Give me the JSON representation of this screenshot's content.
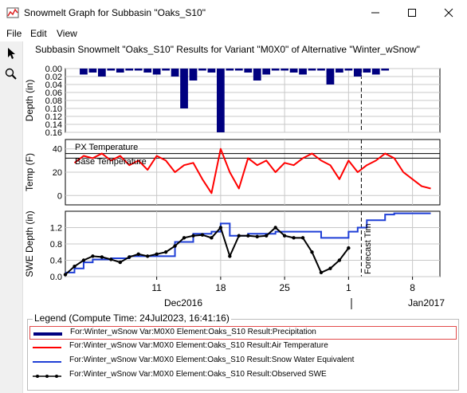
{
  "window": {
    "title": "Snowmelt Graph for Subbasin \"Oaks_S10\"",
    "minimize_glyph": "—",
    "maximize_glyph": "☐",
    "close_glyph": "✕"
  },
  "menu": [
    "File",
    "Edit",
    "View"
  ],
  "tools": [
    "pointer-icon",
    "zoom-icon"
  ],
  "chart_title": "Subbasin Snowmelt \"Oaks_S10\" Results for Variant \"M0X0\" of Alternative \"Winter_wSnow\"",
  "chart_data": [
    {
      "type": "bar",
      "ylabel": "Depth (in)",
      "ylim": [
        0.16,
        0.0
      ],
      "yticks": [
        "0.00",
        "0.02",
        "0.04",
        "0.06",
        "0.08",
        "0.10",
        "0.12",
        "0.14",
        "0.16"
      ],
      "x_days": [
        3,
        4,
        5,
        6,
        7,
        8,
        9,
        10,
        11,
        12,
        13,
        14,
        15,
        16,
        17,
        18,
        19,
        20,
        21,
        22,
        23,
        24,
        25,
        26,
        27,
        28,
        29,
        30,
        31,
        32,
        33,
        34,
        35,
        36,
        37,
        38,
        39,
        40
      ],
      "values": [
        0.015,
        0.01,
        0.02,
        0.005,
        0.01,
        0.005,
        0.005,
        0.01,
        0.015,
        0.005,
        0.02,
        0.1,
        0.03,
        0.005,
        0.01,
        0.16,
        0.005,
        0.005,
        0.01,
        0.03,
        0.015,
        0.005,
        0.005,
        0.01,
        0.015,
        0.005,
        0.005,
        0.04,
        0.01,
        0.005,
        0.02,
        0.01,
        0.015,
        0.005,
        0,
        0,
        0,
        0
      ],
      "color": "#000080"
    },
    {
      "type": "line",
      "ylabel": "Temp (F)",
      "ylim": [
        -8,
        48
      ],
      "yticks": [
        "0",
        "20",
        "40"
      ],
      "series": [
        {
          "name": "Air Temperature",
          "color": "#ff0000",
          "x": [
            2,
            3,
            4,
            5,
            6,
            7,
            8,
            9,
            10,
            11,
            12,
            13,
            14,
            15,
            16,
            17,
            18,
            19,
            20,
            21,
            22,
            23,
            24,
            25,
            26,
            27,
            28,
            29,
            30,
            31,
            32,
            33,
            34,
            35,
            36,
            37,
            38,
            39,
            40,
            41
          ],
          "values": [
            28,
            34,
            32,
            36,
            30,
            34,
            26,
            30,
            22,
            34,
            30,
            20,
            26,
            28,
            14,
            2,
            40,
            20,
            6,
            32,
            26,
            30,
            20,
            28,
            26,
            32,
            36,
            30,
            26,
            14,
            30,
            20,
            26,
            30,
            36,
            32,
            20,
            14,
            8,
            6
          ]
        }
      ],
      "reference_lines": [
        {
          "name": "PX Temperature",
          "value": 36
        },
        {
          "name": "Base Temperature",
          "value": 32
        }
      ]
    },
    {
      "type": "line",
      "ylabel": "SWE Depth (in)",
      "ylim": [
        0.0,
        1.6
      ],
      "yticks": [
        "0.0",
        "0.4",
        "0.8",
        "1.2"
      ],
      "x_ticks": [
        "11",
        "18",
        "25",
        "1",
        "8"
      ],
      "x_months": [
        "Dec2016",
        "Jan2017"
      ],
      "series": [
        {
          "name": "Snow Water Equivalent",
          "color": "#1f3fd6",
          "x": [
            1,
            2,
            3,
            4,
            5,
            6,
            7,
            8,
            9,
            10,
            11,
            12,
            13,
            14,
            15,
            16,
            17,
            18,
            19,
            20,
            21,
            22,
            23,
            24,
            25,
            26,
            27,
            28,
            29,
            30,
            31,
            32,
            33,
            34,
            35,
            36,
            37,
            38,
            39,
            40,
            41
          ],
          "values": [
            0.1,
            0.2,
            0.35,
            0.42,
            0.42,
            0.45,
            0.45,
            0.5,
            0.5,
            0.5,
            0.5,
            0.5,
            0.85,
            0.85,
            1.05,
            1.05,
            1.1,
            1.3,
            1.0,
            1.0,
            1.05,
            1.05,
            1.05,
            1.1,
            1.1,
            1.1,
            1.1,
            1.1,
            0.95,
            0.95,
            0.95,
            1.1,
            1.2,
            1.38,
            1.38,
            1.52,
            1.55,
            1.55,
            1.55,
            1.55,
            1.55
          ]
        },
        {
          "name": "Observed SWE",
          "color": "#000000",
          "x": [
            1,
            2,
            3,
            4,
            5,
            6,
            7,
            8,
            9,
            10,
            11,
            12,
            13,
            14,
            15,
            16,
            17,
            18,
            19,
            20,
            21,
            22,
            23,
            24,
            25,
            26,
            27,
            28,
            29,
            30,
            31,
            32
          ],
          "values": [
            0.05,
            0.25,
            0.4,
            0.5,
            0.48,
            0.42,
            0.35,
            0.48,
            0.55,
            0.5,
            0.55,
            0.6,
            0.75,
            0.95,
            1.0,
            1.02,
            0.95,
            1.2,
            0.5,
            1.0,
            1.0,
            0.98,
            1.0,
            1.2,
            1.0,
            0.95,
            0.95,
            0.6,
            0.1,
            0.2,
            0.4,
            0.7
          ]
        }
      ],
      "forecast_label": "Forecast Tim"
    }
  ],
  "legend": {
    "title": "Legend (Compute Time: 24Jul2023, 16:41:16)",
    "items": [
      {
        "label": "For:Winter_wSnow Var:M0X0 Element:Oaks_S10 Result:Precipitation",
        "color": "#000080",
        "style": "thick",
        "selected": true
      },
      {
        "label": "For:Winter_wSnow Var:M0X0 Element:Oaks_S10 Result:Air Temperature",
        "color": "#ff0000",
        "style": "line",
        "selected": false
      },
      {
        "label": "For:Winter_wSnow Var:M0X0 Element:Oaks_S10 Result:Snow Water Equivalent",
        "color": "#1f3fd6",
        "style": "line",
        "selected": false
      },
      {
        "label": "For:Winter_wSnow Var:M0X0 Element:Oaks_S10 Result:Observed SWE",
        "color": "#000000",
        "style": "marker",
        "selected": false
      }
    ]
  }
}
